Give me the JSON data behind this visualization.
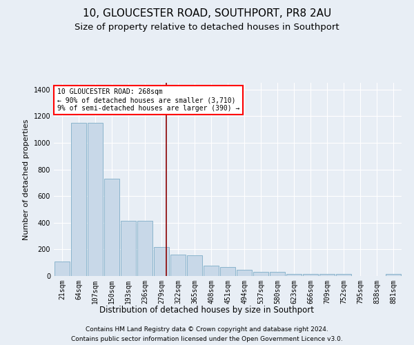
{
  "title": "10, GLOUCESTER ROAD, SOUTHPORT, PR8 2AU",
  "subtitle": "Size of property relative to detached houses in Southport",
  "xlabel": "Distribution of detached houses by size in Southport",
  "ylabel": "Number of detached properties",
  "footer_line1": "Contains HM Land Registry data © Crown copyright and database right 2024.",
  "footer_line2": "Contains public sector information licensed under the Open Government Licence v3.0.",
  "categories": [
    "21sqm",
    "64sqm",
    "107sqm",
    "150sqm",
    "193sqm",
    "236sqm",
    "279sqm",
    "322sqm",
    "365sqm",
    "408sqm",
    "451sqm",
    "494sqm",
    "537sqm",
    "580sqm",
    "623sqm",
    "666sqm",
    "709sqm",
    "752sqm",
    "795sqm",
    "838sqm",
    "881sqm"
  ],
  "bar_values": [
    110,
    1150,
    1150,
    730,
    415,
    415,
    215,
    160,
    155,
    80,
    68,
    45,
    30,
    30,
    18,
    18,
    15,
    15,
    0,
    0,
    15
  ],
  "bar_color": "#c8d8e8",
  "bar_edge_color": "#8ab4cc",
  "vline_color": "#8b0000",
  "vline_x": 6.3,
  "annotation_text": "10 GLOUCESTER ROAD: 268sqm\n← 90% of detached houses are smaller (3,710)\n9% of semi-detached houses are larger (390) →",
  "annotation_box_color": "white",
  "annotation_box_edge_color": "red",
  "ylim": [
    0,
    1450
  ],
  "yticks": [
    0,
    200,
    400,
    600,
    800,
    1000,
    1200,
    1400
  ],
  "background_color": "#e8eef5",
  "plot_bg_color": "#e8eef5",
  "grid_color": "white",
  "title_fontsize": 11,
  "subtitle_fontsize": 9.5,
  "tick_fontsize": 7,
  "ylabel_fontsize": 8,
  "xlabel_fontsize": 8.5,
  "footer_fontsize": 6.5,
  "annot_fontsize": 7
}
